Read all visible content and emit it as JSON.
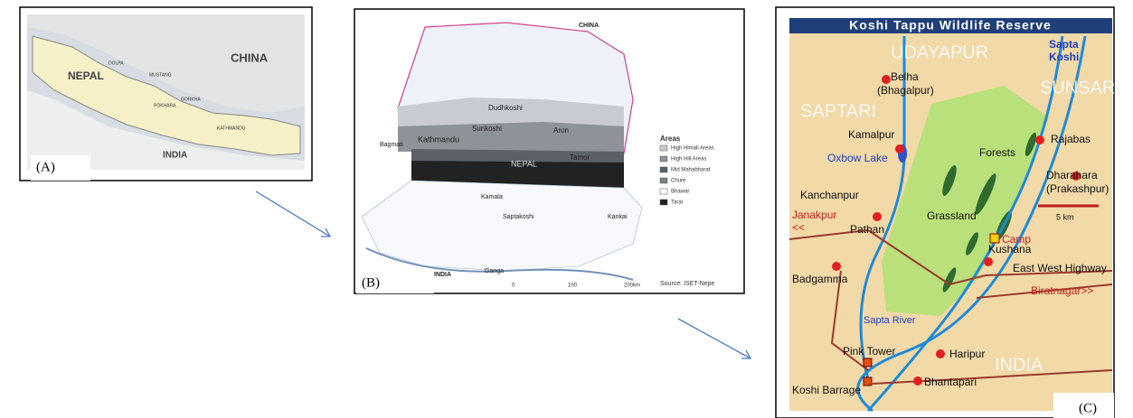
{
  "panel_a": {
    "label": "(A)",
    "places": [
      "NEPAL",
      "CHINA",
      "INDIA",
      "DOLPA",
      "MUSTANG",
      "POKHARA",
      "GORKHA",
      "KATHMANDU"
    ]
  },
  "panel_b": {
    "label": "(B)",
    "places": [
      "CHINA",
      "INDIA",
      "Kathmandu",
      "Sunkoshi",
      "Dudhkoshi",
      "Arun",
      "Tamor",
      "NEPAL",
      "Bagmati",
      "Kamala",
      "Saptakoshi",
      "Kankai",
      "Ganga"
    ],
    "legend_title": "Areas",
    "legend": [
      "High Himali Areas",
      "High Hill Areas",
      "Mid Mahabharat",
      "Chure",
      "Bhawar",
      "Tarai"
    ],
    "scale": [
      "0",
      "100",
      "200km"
    ],
    "source": "Source: ISET-Nepe"
  },
  "panel_c": {
    "title": "Koshi Tappu Wildlife Reserve",
    "label": "(C)",
    "places": [
      "UDAYAPUR",
      "Sapta",
      "Koshi",
      "Belha",
      "(Bhagalpur)",
      "SUNSARI",
      "SAPTARI",
      "Rajabas",
      "Kamalpur",
      "Oxbow Lake",
      "Forests",
      "Dharahara",
      "(Prakashpur)",
      "Grassland",
      "Kanchanpur",
      "Janakpur",
      "<<",
      "Pathan",
      "5 km",
      "Camp",
      "Kushana",
      "East West Highway",
      "Badgamma",
      "Biratnagar>>",
      "Sapta River",
      "Pink Tower",
      "Haripur",
      "INDIA",
      "Koshi Barrage",
      "Bhantapari"
    ]
  }
}
